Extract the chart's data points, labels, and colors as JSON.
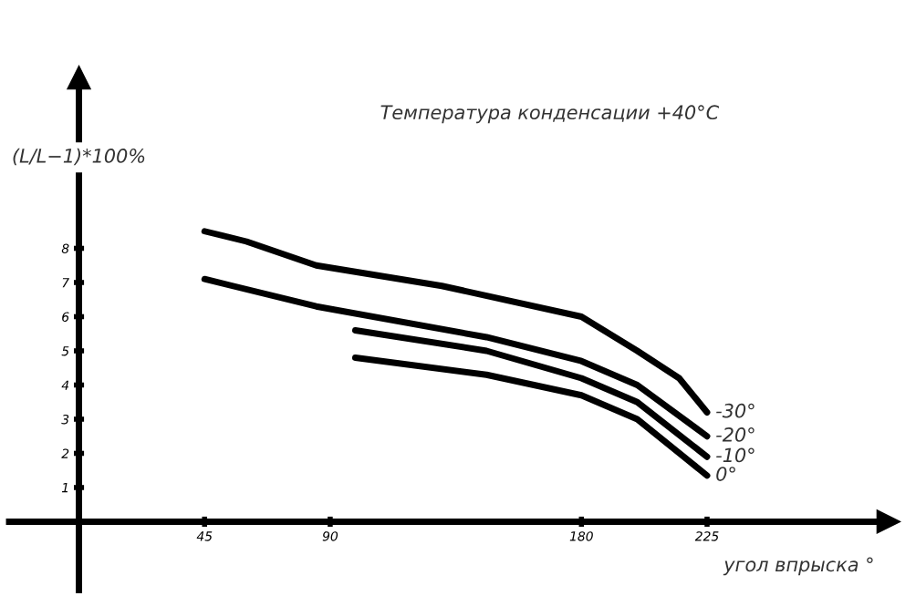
{
  "chart_data": {
    "type": "line",
    "title": "Температура конденсации +40°C",
    "xlabel": "угол впрыска °",
    "ylabel": "(L/L−1)*100%",
    "xlim": [
      -25,
      290
    ],
    "ylim": [
      -2,
      13
    ],
    "xticks": [
      45,
      90,
      180,
      225
    ],
    "yticks": [
      1,
      2,
      3,
      4,
      5,
      6,
      7,
      8
    ],
    "grid": false,
    "legend": false,
    "marker": "none",
    "line_style": "solid",
    "series": [
      {
        "name": "-30°",
        "color": "#000000",
        "x": [
          45,
          60,
          85,
          130,
          180,
          200,
          215,
          225
        ],
        "values": [
          8.5,
          8.2,
          7.5,
          6.9,
          6.0,
          5.0,
          4.2,
          3.2
        ]
      },
      {
        "name": "-20°",
        "color": "#000000",
        "x": [
          45,
          85,
          146,
          180,
          200,
          225
        ],
        "values": [
          7.1,
          6.3,
          5.4,
          4.7,
          4.0,
          2.5
        ]
      },
      {
        "name": "-10°",
        "color": "#000000",
        "x": [
          99,
          146,
          180,
          200,
          225
        ],
        "values": [
          5.6,
          5.0,
          4.2,
          3.5,
          1.9
        ]
      },
      {
        "name": "0°",
        "color": "#000000",
        "x": [
          99,
          146,
          180,
          200,
          225
        ],
        "values": [
          4.8,
          4.3,
          3.7,
          3.0,
          1.35
        ]
      }
    ]
  }
}
